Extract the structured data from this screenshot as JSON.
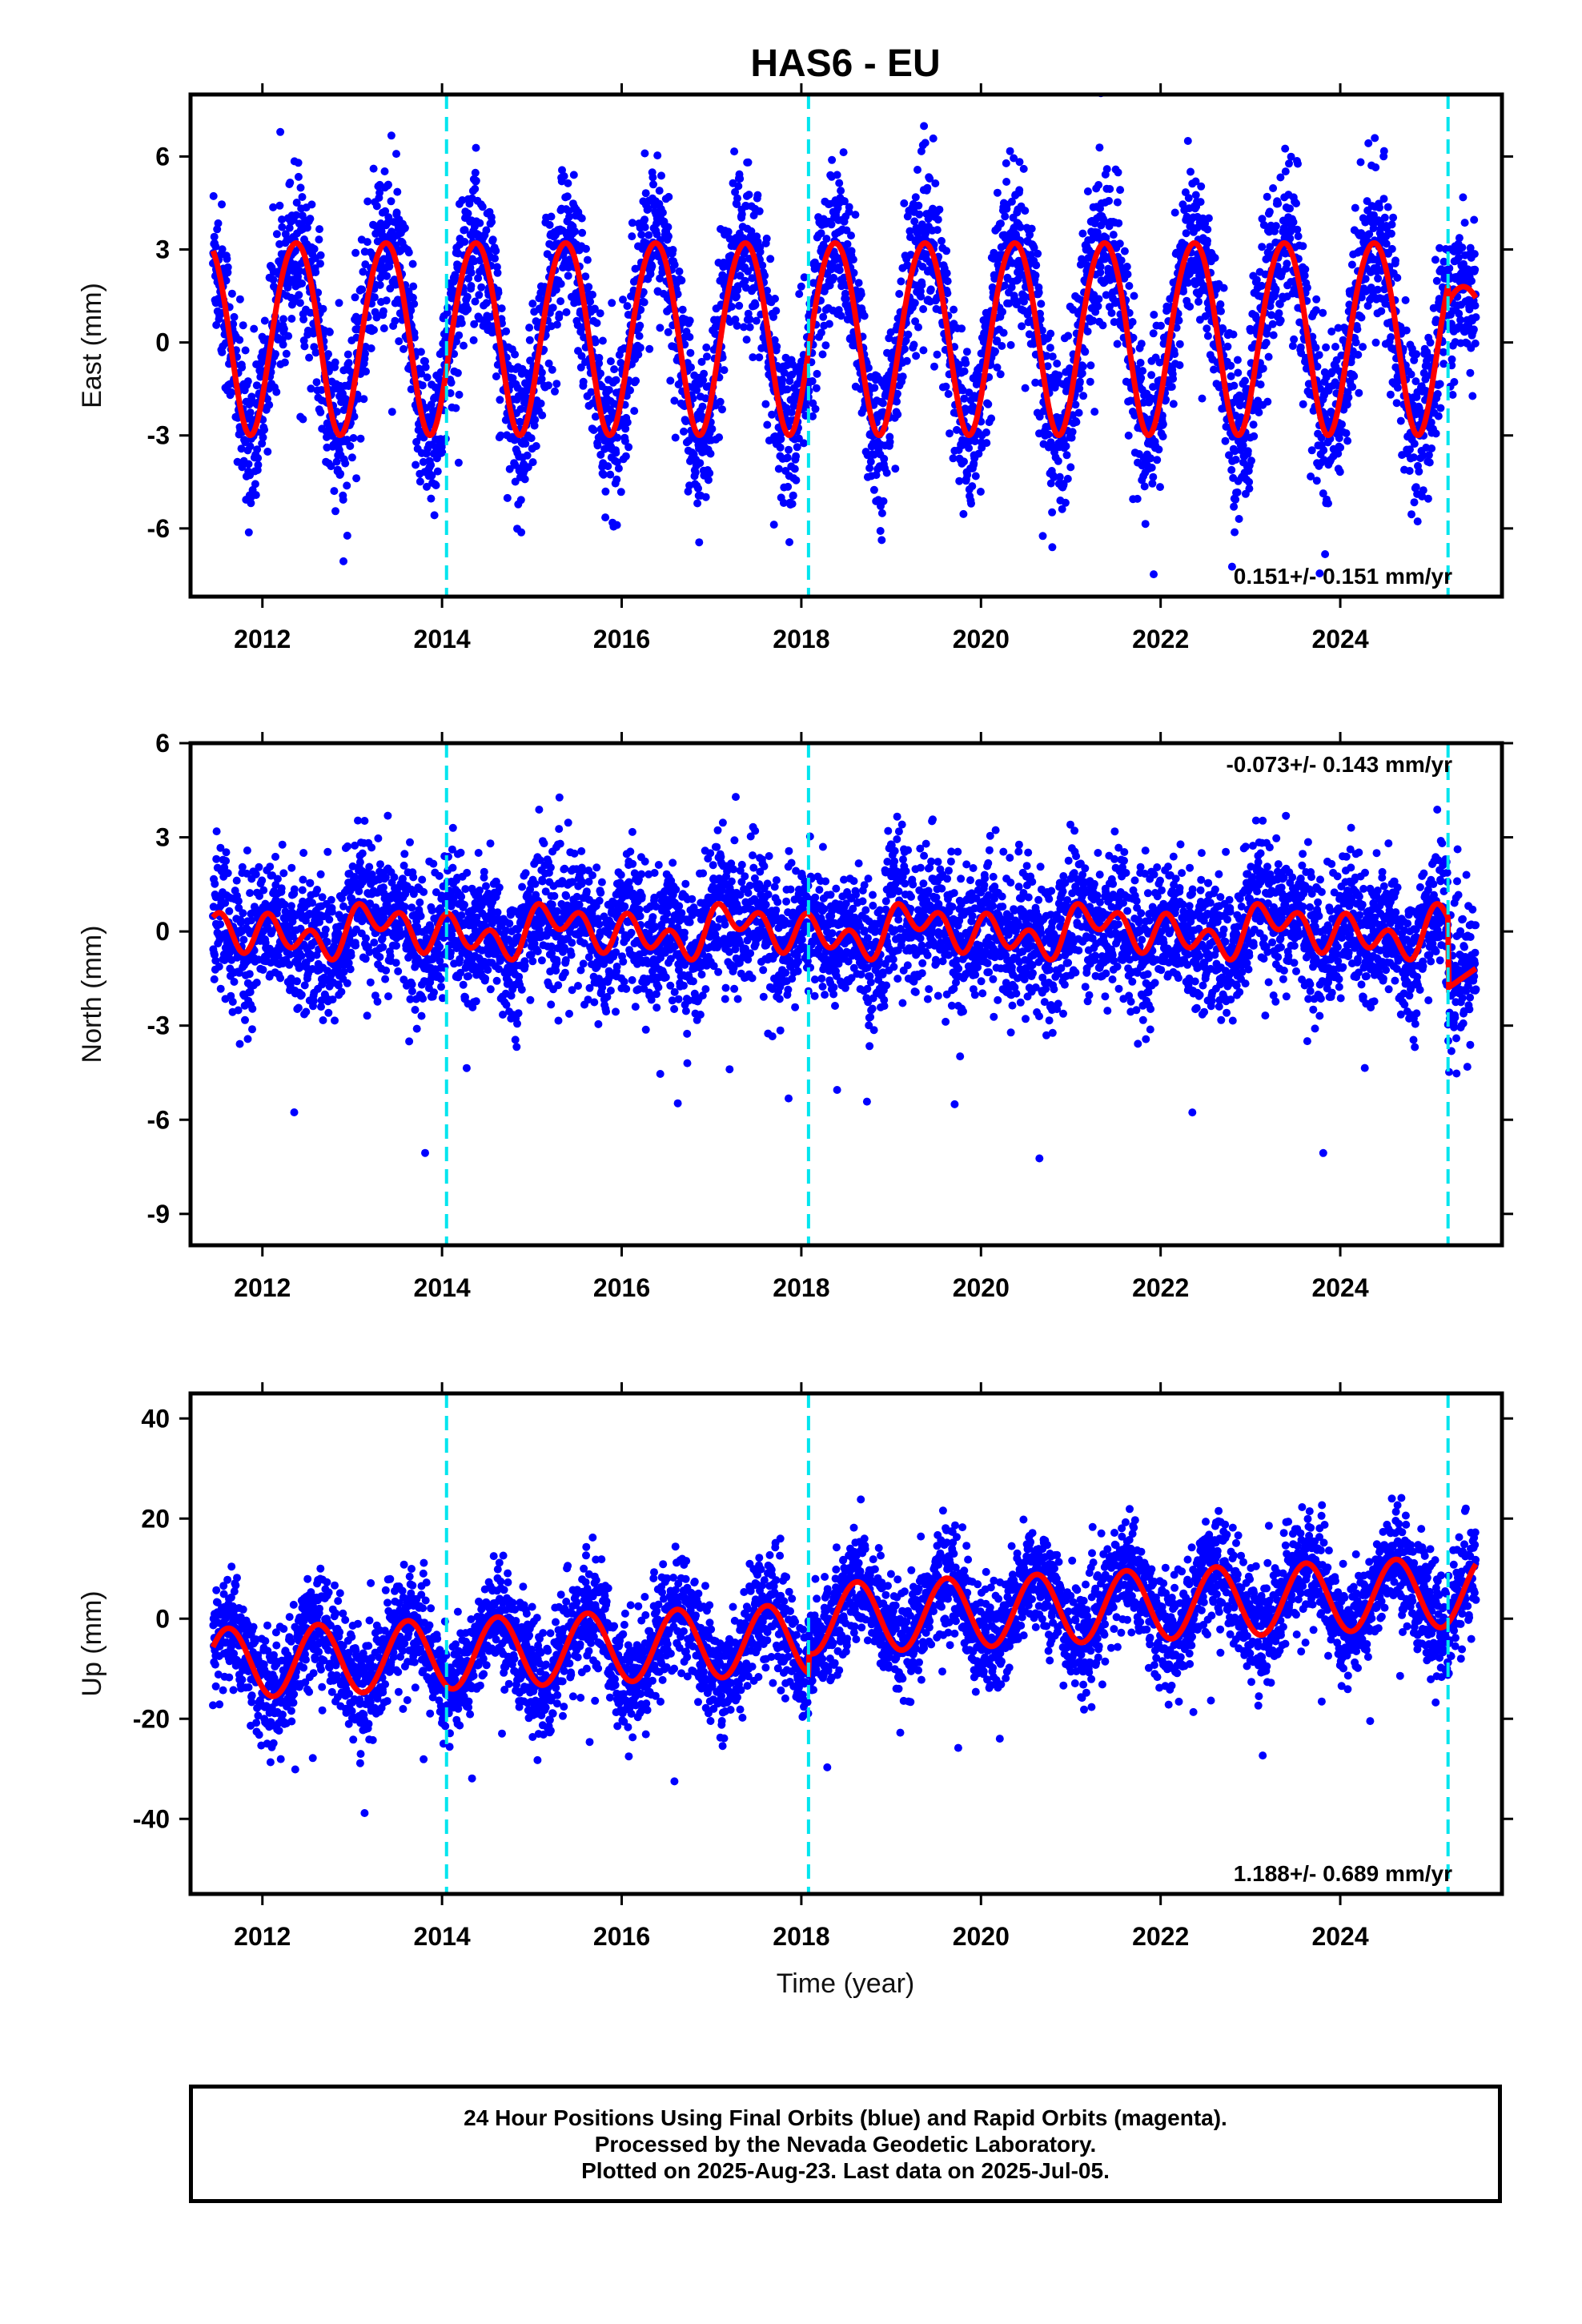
{
  "title": "HAS6 - EU",
  "xlabel": "Time (year)",
  "caption": {
    "line1": "24 Hour Positions Using Final Orbits (blue) and Rapid Orbits (magenta).",
    "line2": "Processed by the Nevada Geodetic Laboratory.",
    "line3": "Plotted on 2025-Aug-23. Last data on 2025-Jul-05."
  },
  "colors": {
    "points": "#0000ff",
    "model": "#ff0000",
    "event_lines": "#00e5ee",
    "frame": "#000000"
  },
  "chart_data": [
    {
      "type": "scatter",
      "title": "HAS6 - EU",
      "ylabel": "East (mm)",
      "xlabel": "",
      "xlim": [
        2011.2,
        2025.8
      ],
      "ylim": [
        -8.2,
        8.0
      ],
      "yticks": [
        -6,
        -3,
        0,
        3,
        6
      ],
      "xticks": [
        2012,
        2014,
        2016,
        2018,
        2020,
        2022,
        2024
      ],
      "rate_text": "0.151+/- 0.151 mm/yr",
      "rate_position": "bottom-right",
      "event_lines": [
        2014.05,
        2018.08,
        2025.2
      ],
      "model": {
        "offset": 0.3,
        "trend_mm_per_yr": 0.0,
        "annual_amplitude": 3.1,
        "annual_peak_month": "May",
        "semiannual_amplitude": 0.2
      },
      "data_summary": {
        "start": 2011.45,
        "end": 2025.51,
        "scatter_sd_mm": 1.3,
        "points": 4900
      },
      "series": [
        {
          "name": "Final Orbits",
          "color": "#0000ff"
        },
        {
          "name": "Model",
          "color": "#ff0000"
        }
      ]
    },
    {
      "type": "scatter",
      "ylabel": "North (mm)",
      "xlabel": "",
      "xlim": [
        2011.2,
        2025.8
      ],
      "ylim": [
        -10.0,
        6.0
      ],
      "yticks": [
        -9,
        -6,
        -3,
        0,
        3,
        6
      ],
      "xticks": [
        2012,
        2014,
        2016,
        2018,
        2020,
        2022,
        2024
      ],
      "rate_text": "-0.073+/- 0.143 mm/yr",
      "rate_position": "top-right",
      "event_lines": [
        2014.05,
        2018.08,
        2025.2
      ],
      "model": {
        "offset": 0.0,
        "trend_mm_per_yr": 0.0,
        "annual_amplitude": 0.35,
        "semiannual_amplitude": 0.5,
        "post_2025_offset": -1.8
      },
      "data_summary": {
        "start": 2011.45,
        "end": 2025.51,
        "scatter_sd_mm": 1.1,
        "points": 4900
      },
      "series": [
        {
          "name": "Final Orbits",
          "color": "#0000ff"
        },
        {
          "name": "Model",
          "color": "#ff0000"
        }
      ]
    },
    {
      "type": "scatter",
      "ylabel": "Up (mm)",
      "xlabel": "Time (year)",
      "xlim": [
        2011.2,
        2025.8
      ],
      "ylim": [
        -55,
        45
      ],
      "yticks": [
        -40,
        -20,
        0,
        20,
        40
      ],
      "xticks": [
        2012,
        2014,
        2016,
        2018,
        2020,
        2022,
        2024
      ],
      "rate_text": "1.188+/- 0.689 mm/yr",
      "rate_position": "bottom-right",
      "event_lines": [
        2014.05,
        2018.08,
        2025.2
      ],
      "model": {
        "offset_2011": -9.0,
        "trend_mm_per_yr": 0.75,
        "step_at_2018": 4.0,
        "annual_amplitude": 7.0,
        "annual_peak_month": "Aug"
      },
      "data_summary": {
        "start": 2011.45,
        "end": 2025.51,
        "scatter_sd_mm": 5.5,
        "points": 4900
      },
      "series": [
        {
          "name": "Final Orbits",
          "color": "#0000ff"
        },
        {
          "name": "Model",
          "color": "#ff0000"
        }
      ]
    }
  ]
}
